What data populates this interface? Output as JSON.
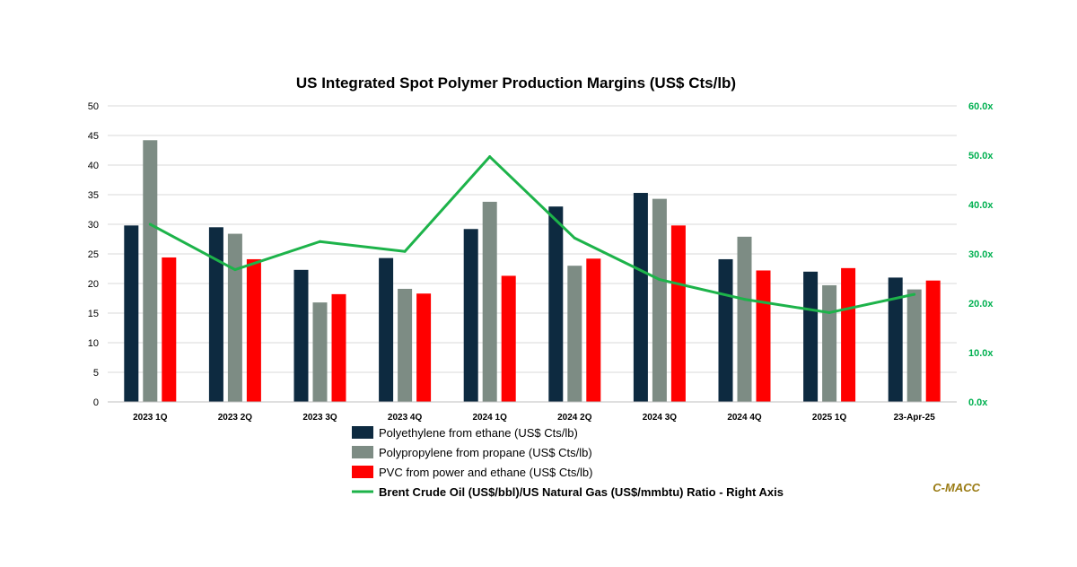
{
  "chart_data": {
    "type": "bar",
    "title": "US Integrated Spot Polymer Production Margins (US$ Cts/lb)",
    "categories": [
      "2023 1Q",
      "2023 2Q",
      "2023 3Q",
      "2023 4Q",
      "2024 1Q",
      "2024 2Q",
      "2024 3Q",
      "2024 4Q",
      "2025 1Q",
      "23-Apr-25"
    ],
    "series": [
      {
        "name": "Polyethylene from ethane (US$ Cts/lb)",
        "kind": "bar",
        "axis": "left",
        "color": "#0d2a40",
        "values": [
          29.8,
          29.5,
          22.3,
          24.3,
          29.2,
          33.0,
          35.3,
          24.1,
          22.0,
          21.0
        ]
      },
      {
        "name": "Polypropylene from propane (US$ Cts/lb)",
        "kind": "bar",
        "axis": "left",
        "color": "#7d8c84",
        "values": [
          44.2,
          28.4,
          16.8,
          19.1,
          33.8,
          23.0,
          34.3,
          27.9,
          19.7,
          19.0
        ]
      },
      {
        "name": "PVC from power and ethane (US$ Cts/lb)",
        "kind": "bar",
        "axis": "left",
        "color": "#ff0000",
        "values": [
          24.4,
          24.1,
          18.2,
          18.3,
          21.3,
          24.2,
          29.8,
          22.2,
          22.6,
          20.5
        ]
      },
      {
        "name": "Brent Crude Oil (US$/bbl)/US Natural Gas (US$/mmbtu) Ratio - Right Axis",
        "kind": "line",
        "axis": "right",
        "color": "#1db34a",
        "values": [
          36.0,
          26.8,
          32.5,
          30.5,
          49.7,
          33.2,
          24.8,
          20.8,
          18.1,
          21.8
        ]
      }
    ],
    "ylim_left": [
      0,
      50
    ],
    "yticks_left": [
      "0",
      "5",
      "10",
      "15",
      "20",
      "25",
      "30",
      "35",
      "40",
      "45",
      "50"
    ],
    "ylim_right": [
      0,
      60
    ],
    "yticks_right": [
      "0.0x",
      "10.0x",
      "20.0x",
      "30.0x",
      "40.0x",
      "50.0x",
      "60.0x"
    ],
    "grid": true,
    "legend_position": "bottom-center"
  },
  "brand": {
    "text": "C-MACC",
    "color": "#9a7b14"
  },
  "right_axis_color": "#00b050",
  "gridline_color": "#d9d9d9"
}
